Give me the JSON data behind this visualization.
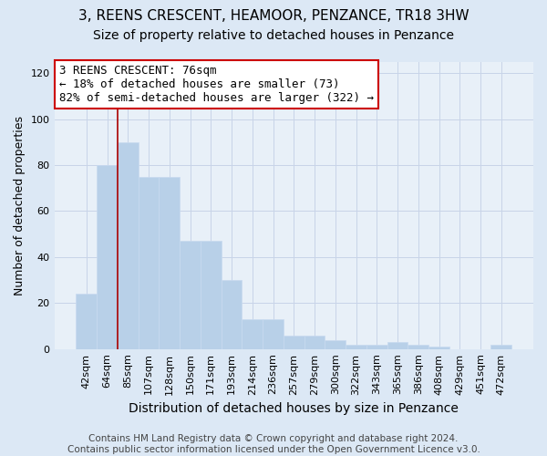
{
  "title": "3, REENS CRESCENT, HEAMOOR, PENZANCE, TR18 3HW",
  "subtitle": "Size of property relative to detached houses in Penzance",
  "xlabel": "Distribution of detached houses by size in Penzance",
  "ylabel": "Number of detached properties",
  "categories": [
    "42sqm",
    "64sqm",
    "85sqm",
    "107sqm",
    "128sqm",
    "150sqm",
    "171sqm",
    "193sqm",
    "214sqm",
    "236sqm",
    "257sqm",
    "279sqm",
    "300sqm",
    "322sqm",
    "343sqm",
    "365sqm",
    "386sqm",
    "408sqm",
    "429sqm",
    "451sqm",
    "472sqm"
  ],
  "values": [
    24,
    80,
    90,
    75,
    75,
    47,
    47,
    30,
    13,
    13,
    6,
    6,
    4,
    2,
    2,
    3,
    2,
    1,
    0,
    0,
    2
  ],
  "bar_color": "#b8d0e8",
  "bar_edge_color": "#c8daf0",
  "vline_x_index": 1,
  "vline_color": "#aa0000",
  "annotation_line1": "3 REENS CRESCENT: 76sqm",
  "annotation_line2": "← 18% of detached houses are smaller (73)",
  "annotation_line3": "82% of semi-detached houses are larger (322) →",
  "annotation_box_facecolor": "#ffffff",
  "annotation_box_edgecolor": "#cc0000",
  "ylim": [
    0,
    125
  ],
  "yticks": [
    0,
    20,
    40,
    60,
    80,
    100,
    120
  ],
  "grid_color": "#c8d4e8",
  "background_color": "#dce8f5",
  "axes_facecolor": "#e8f0f8",
  "footer_text": "Contains HM Land Registry data © Crown copyright and database right 2024.\nContains public sector information licensed under the Open Government Licence v3.0.",
  "title_fontsize": 11,
  "subtitle_fontsize": 10,
  "xlabel_fontsize": 10,
  "ylabel_fontsize": 9,
  "tick_fontsize": 8,
  "footer_fontsize": 7.5,
  "annotation_fontsize": 9
}
